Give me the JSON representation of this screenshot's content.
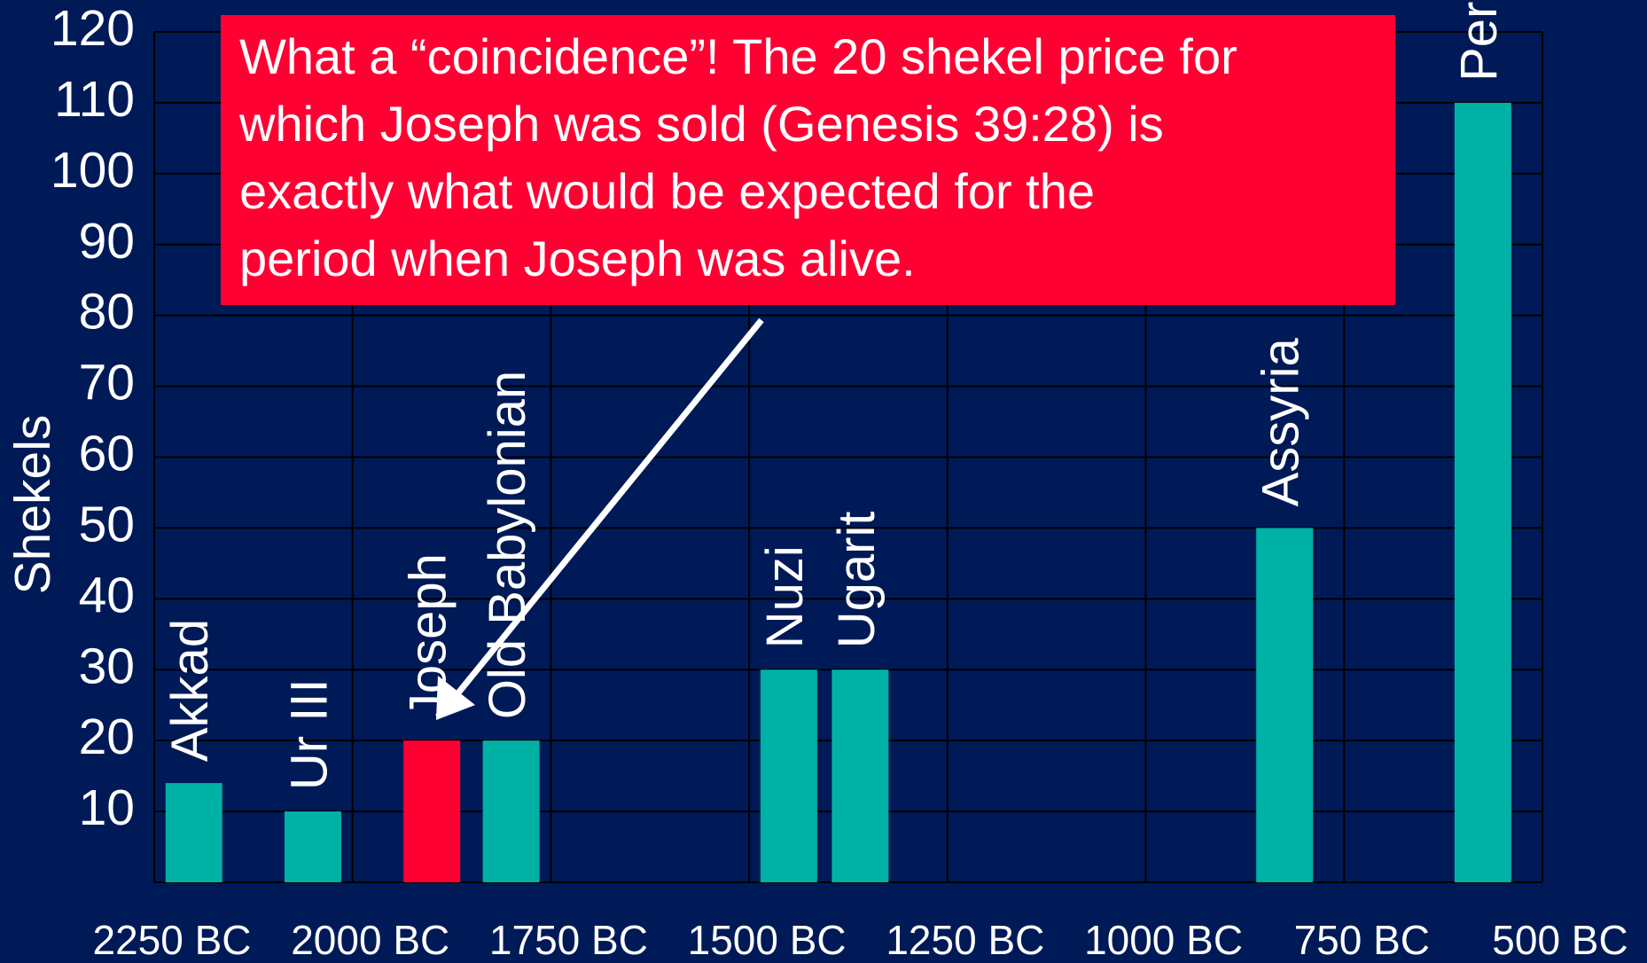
{
  "chart_data": {
    "type": "bar",
    "ylabel": "Shekels",
    "categories": [
      "Akkad",
      "Ur III",
      "Joseph",
      "Old Babylonian",
      "Nuzi",
      "Ugarit",
      "Assyria",
      "Persia"
    ],
    "x": [
      2200,
      2050,
      1900,
      1800,
      1450,
      1360,
      825,
      575
    ],
    "values": [
      14,
      10,
      20,
      20,
      30,
      30,
      50,
      110
    ],
    "colors": [
      "#00b2a5",
      "#00b2a5",
      "#ff0033",
      "#00b2a5",
      "#00b2a5",
      "#00b2a5",
      "#00b2a5",
      "#00b2a5"
    ],
    "xlim": [
      2250,
      500
    ],
    "xticks": [
      {
        "value": 2250,
        "label": "2250 BC"
      },
      {
        "value": 2000,
        "label": "2000 BC"
      },
      {
        "value": 1750,
        "label": "1750 BC"
      },
      {
        "value": 1500,
        "label": "1500 BC"
      },
      {
        "value": 1250,
        "label": "1250 BC"
      },
      {
        "value": 1000,
        "label": "1000 BC"
      },
      {
        "value": 750,
        "label": "750 BC"
      },
      {
        "value": 500,
        "label": "500 BC"
      }
    ],
    "ylim": [
      0,
      120
    ],
    "yticks": [
      10,
      20,
      30,
      40,
      50,
      60,
      70,
      80,
      90,
      100,
      110,
      120
    ],
    "grid": true,
    "annotation_lines": [
      "What a “coincidence”! The 20 shekel price for",
      "which Joseph was sold (Genesis 39:28) is",
      "exactly what would be expected for the",
      "period when Joseph was alive."
    ]
  }
}
